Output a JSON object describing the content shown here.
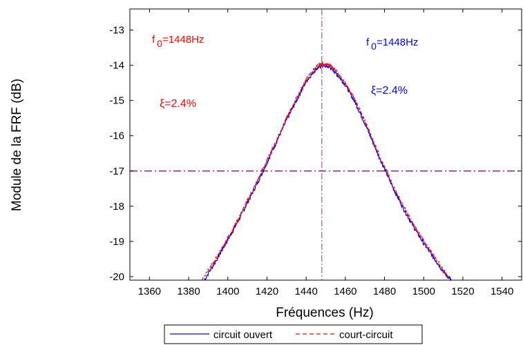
{
  "chart_data": {
    "type": "line",
    "title": "",
    "xlabel": "Fréquences (Hz)",
    "ylabel": "Module de la FRF (dB)",
    "xlim": [
      1350,
      1550
    ],
    "ylim": [
      -20.1,
      -12.4
    ],
    "x_ticks": [
      1360,
      1380,
      1400,
      1420,
      1440,
      1460,
      1480,
      1500,
      1520,
      1540
    ],
    "y_ticks": [
      -13,
      -14,
      -15,
      -16,
      -17,
      -18,
      -19,
      -20
    ],
    "grid": false,
    "legend_position": "bottom-center",
    "series": [
      {
        "name": "circuit ouvert",
        "color": "#0000ff",
        "linestyle": "solid",
        "x": [
          1388,
          1395,
          1400,
          1405,
          1410,
          1415,
          1420,
          1425,
          1430,
          1435,
          1440,
          1445,
          1448,
          1452,
          1455,
          1460,
          1465,
          1470,
          1475,
          1480,
          1485,
          1490,
          1495,
          1500,
          1505,
          1510,
          1514
        ],
        "y": [
          -20.1,
          -19.45,
          -18.95,
          -18.45,
          -17.9,
          -17.35,
          -16.75,
          -16.15,
          -15.55,
          -15.0,
          -14.45,
          -14.1,
          -14.0,
          -14.05,
          -14.2,
          -14.55,
          -15.05,
          -15.65,
          -16.3,
          -16.95,
          -17.55,
          -18.1,
          -18.6,
          -19.05,
          -19.45,
          -19.85,
          -20.1
        ]
      },
      {
        "name": "court-circuit",
        "color": "#ff0000",
        "linestyle": "dashed",
        "x": [
          1387,
          1395,
          1400,
          1405,
          1410,
          1415,
          1420,
          1425,
          1430,
          1435,
          1440,
          1445,
          1448,
          1452,
          1455,
          1460,
          1465,
          1470,
          1475,
          1480,
          1485,
          1490,
          1495,
          1500,
          1505,
          1510,
          1513
        ],
        "y": [
          -20.1,
          -19.4,
          -18.9,
          -18.4,
          -17.85,
          -17.3,
          -16.7,
          -16.1,
          -15.5,
          -14.95,
          -14.4,
          -14.05,
          -13.95,
          -14.0,
          -14.15,
          -14.5,
          -15.0,
          -15.6,
          -16.25,
          -16.9,
          -17.5,
          -18.05,
          -18.55,
          -19.0,
          -19.4,
          -19.8,
          -20.1
        ]
      }
    ],
    "reference_lines": {
      "vertical_x": 1448,
      "horizontal_y": -17,
      "color": "#9a309a",
      "linestyle": "dash-dot"
    },
    "annotations": [
      {
        "id": "f0-red",
        "text_main": "f",
        "text_sub": "0",
        "text_rest": "=1448Hz",
        "color": "#ff0000"
      },
      {
        "id": "f0-blue",
        "text_main": "f",
        "text_sub": "0",
        "text_rest": "=1448Hz",
        "color": "#0000ff"
      },
      {
        "id": "xi-red",
        "text": "ξ=2.4%",
        "color": "#ff0000"
      },
      {
        "id": "xi-blue",
        "text": "ξ=2.4%",
        "color": "#0000ff"
      }
    ]
  }
}
